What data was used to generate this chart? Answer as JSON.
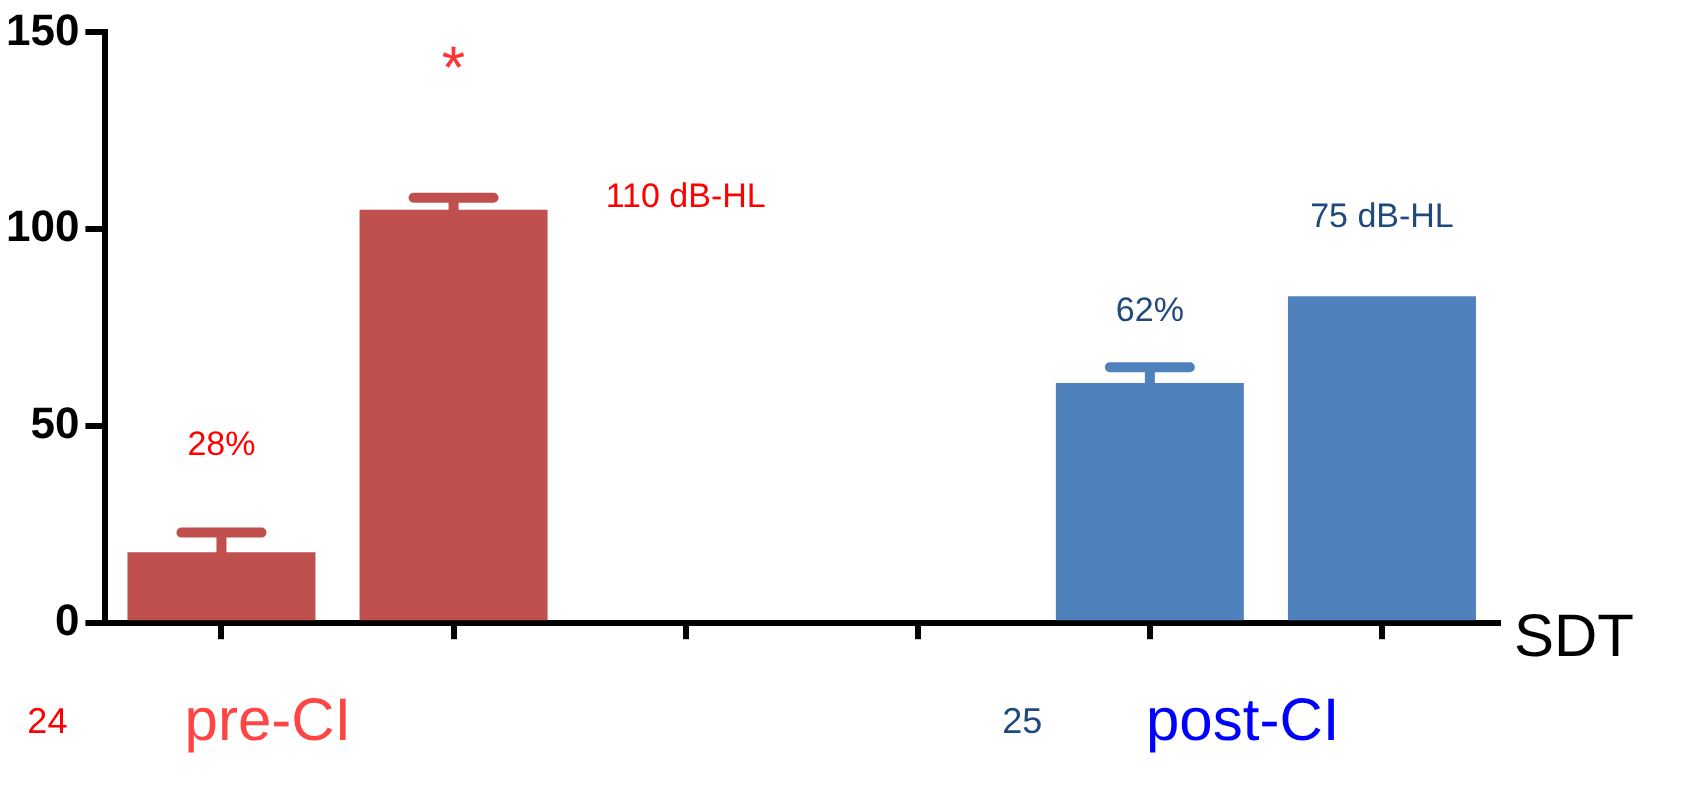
{
  "chart_data": {
    "type": "bar",
    "xlabel": "SDT",
    "categories": [
      null,
      null,
      null,
      null,
      null,
      null
    ],
    "series": [
      {
        "values": [
          18,
          105,
          null,
          null,
          61,
          83
        ],
        "colors": [
          "#c0504d",
          "#c0504d",
          null,
          null,
          "#4f81bd",
          "#4f81bd"
        ],
        "errors": [
          5,
          3,
          null,
          null,
          4,
          null
        ]
      }
    ],
    "ylim": [
      0,
      150
    ],
    "yticks": [
      0,
      50,
      100,
      150
    ],
    "grid": false,
    "legend": false,
    "annotations": [
      "*",
      "110 dB-HL",
      "75 dB-HL",
      "62%",
      "28%",
      "24",
      "pre-CI",
      "25",
      "post-CI"
    ]
  }
}
